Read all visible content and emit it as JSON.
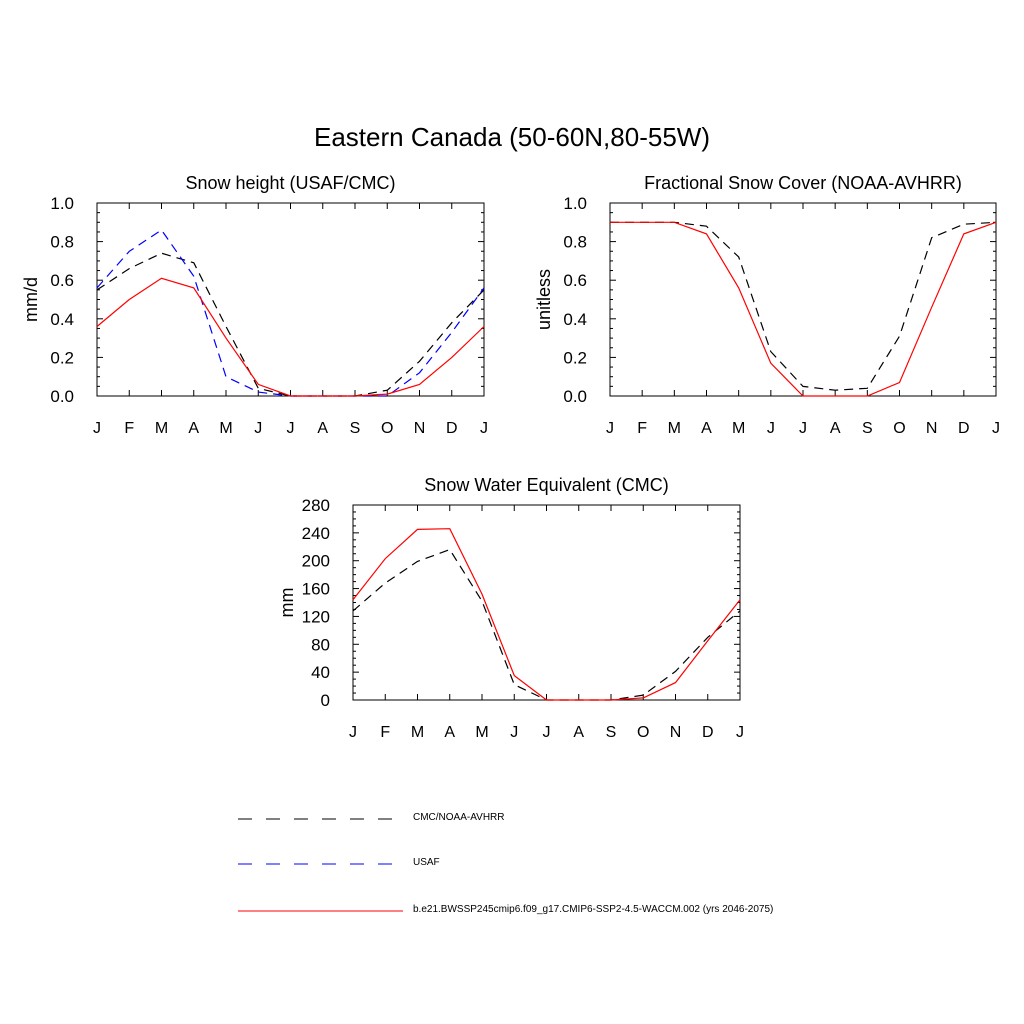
{
  "title": "Eastern Canada (50-60N,80-55W)",
  "legend": [
    {
      "label": "CMC/NOAA-AVHRR",
      "color": "#000000",
      "dash": "dashed"
    },
    {
      "label": "USAF",
      "color": "#0000ff",
      "dash": "dashed"
    },
    {
      "label": "b.e21.BWSSP245cmip6.f09_g17.CMIP6-SSP2-4.5-WACCM.002 (yrs 2046-2075)",
      "color": "#ff0000",
      "dash": "solid"
    }
  ],
  "chart_data": [
    {
      "type": "line",
      "title": "Snow height (USAF/CMC)",
      "xlabel": "",
      "ylabel": "mm/d",
      "categories": [
        "J",
        "F",
        "M",
        "A",
        "M",
        "J",
        "J",
        "A",
        "S",
        "O",
        "N",
        "D",
        "J"
      ],
      "ylim": [
        0,
        1.0
      ],
      "yticks": [
        "0.0",
        "0.2",
        "0.4",
        "0.6",
        "0.8",
        "1.0"
      ],
      "series": [
        {
          "name": "CMC/NOAA-AVHRR",
          "color": "#000000",
          "dash": "dashed",
          "values": [
            0.55,
            0.66,
            0.74,
            0.69,
            0.36,
            0.04,
            0.0,
            0.0,
            0.0,
            0.03,
            0.18,
            0.38,
            0.55
          ]
        },
        {
          "name": "USAF",
          "color": "#0000ff",
          "dash": "dashed",
          "values": [
            0.56,
            0.75,
            0.86,
            0.62,
            0.1,
            0.02,
            0.0,
            0.0,
            0.0,
            0.0,
            0.12,
            0.33,
            0.56
          ]
        },
        {
          "name": "b.e21.BWSSP245cmip6.f09_g17.CMIP6-SSP2-4.5-WACCM.002 (yrs 2046-2075)",
          "color": "#ff0000",
          "dash": "solid",
          "values": [
            0.36,
            0.5,
            0.61,
            0.56,
            0.3,
            0.06,
            0.0,
            0.0,
            0.0,
            0.01,
            0.06,
            0.2,
            0.36
          ]
        }
      ]
    },
    {
      "type": "line",
      "title": "Fractional Snow Cover (NOAA-AVHRR)",
      "xlabel": "",
      "ylabel": "unitless",
      "categories": [
        "J",
        "F",
        "M",
        "A",
        "M",
        "J",
        "J",
        "A",
        "S",
        "O",
        "N",
        "D",
        "J"
      ],
      "ylim": [
        0,
        1.0
      ],
      "yticks": [
        "0.0",
        "0.2",
        "0.4",
        "0.6",
        "0.8",
        "1.0"
      ],
      "series": [
        {
          "name": "CMC/NOAA-AVHRR",
          "color": "#000000",
          "dash": "dashed",
          "values": [
            0.9,
            0.9,
            0.9,
            0.88,
            0.72,
            0.23,
            0.05,
            0.03,
            0.04,
            0.31,
            0.82,
            0.89,
            0.9
          ]
        },
        {
          "name": "b.e21.BWSSP245cmip6.f09_g17.CMIP6-SSP2-4.5-WACCM.002 (yrs 2046-2075)",
          "color": "#ff0000",
          "dash": "solid",
          "values": [
            0.9,
            0.9,
            0.9,
            0.84,
            0.56,
            0.17,
            0.0,
            0.0,
            0.0,
            0.07,
            0.46,
            0.84,
            0.9
          ]
        }
      ]
    },
    {
      "type": "line",
      "title": "Snow Water Equivalent (CMC)",
      "xlabel": "",
      "ylabel": "mm",
      "categories": [
        "J",
        "F",
        "M",
        "A",
        "M",
        "J",
        "J",
        "A",
        "S",
        "O",
        "N",
        "D",
        "J"
      ],
      "ylim": [
        0,
        280
      ],
      "yticks": [
        "0",
        "40",
        "80",
        "120",
        "160",
        "200",
        "240",
        "280"
      ],
      "series": [
        {
          "name": "CMC/NOAA-AVHRR",
          "color": "#000000",
          "dash": "dashed",
          "values": [
            128,
            168,
            199,
            216,
            142,
            22,
            0,
            0,
            0,
            7,
            41,
            90,
            128
          ]
        },
        {
          "name": "b.e21.BWSSP245cmip6.f09_g17.CMIP6-SSP2-4.5-WACCM.002 (yrs 2046-2075)",
          "color": "#ff0000",
          "dash": "solid",
          "values": [
            144,
            203,
            245,
            246,
            152,
            35,
            0,
            0,
            0,
            3,
            25,
            85,
            144
          ]
        }
      ]
    }
  ]
}
